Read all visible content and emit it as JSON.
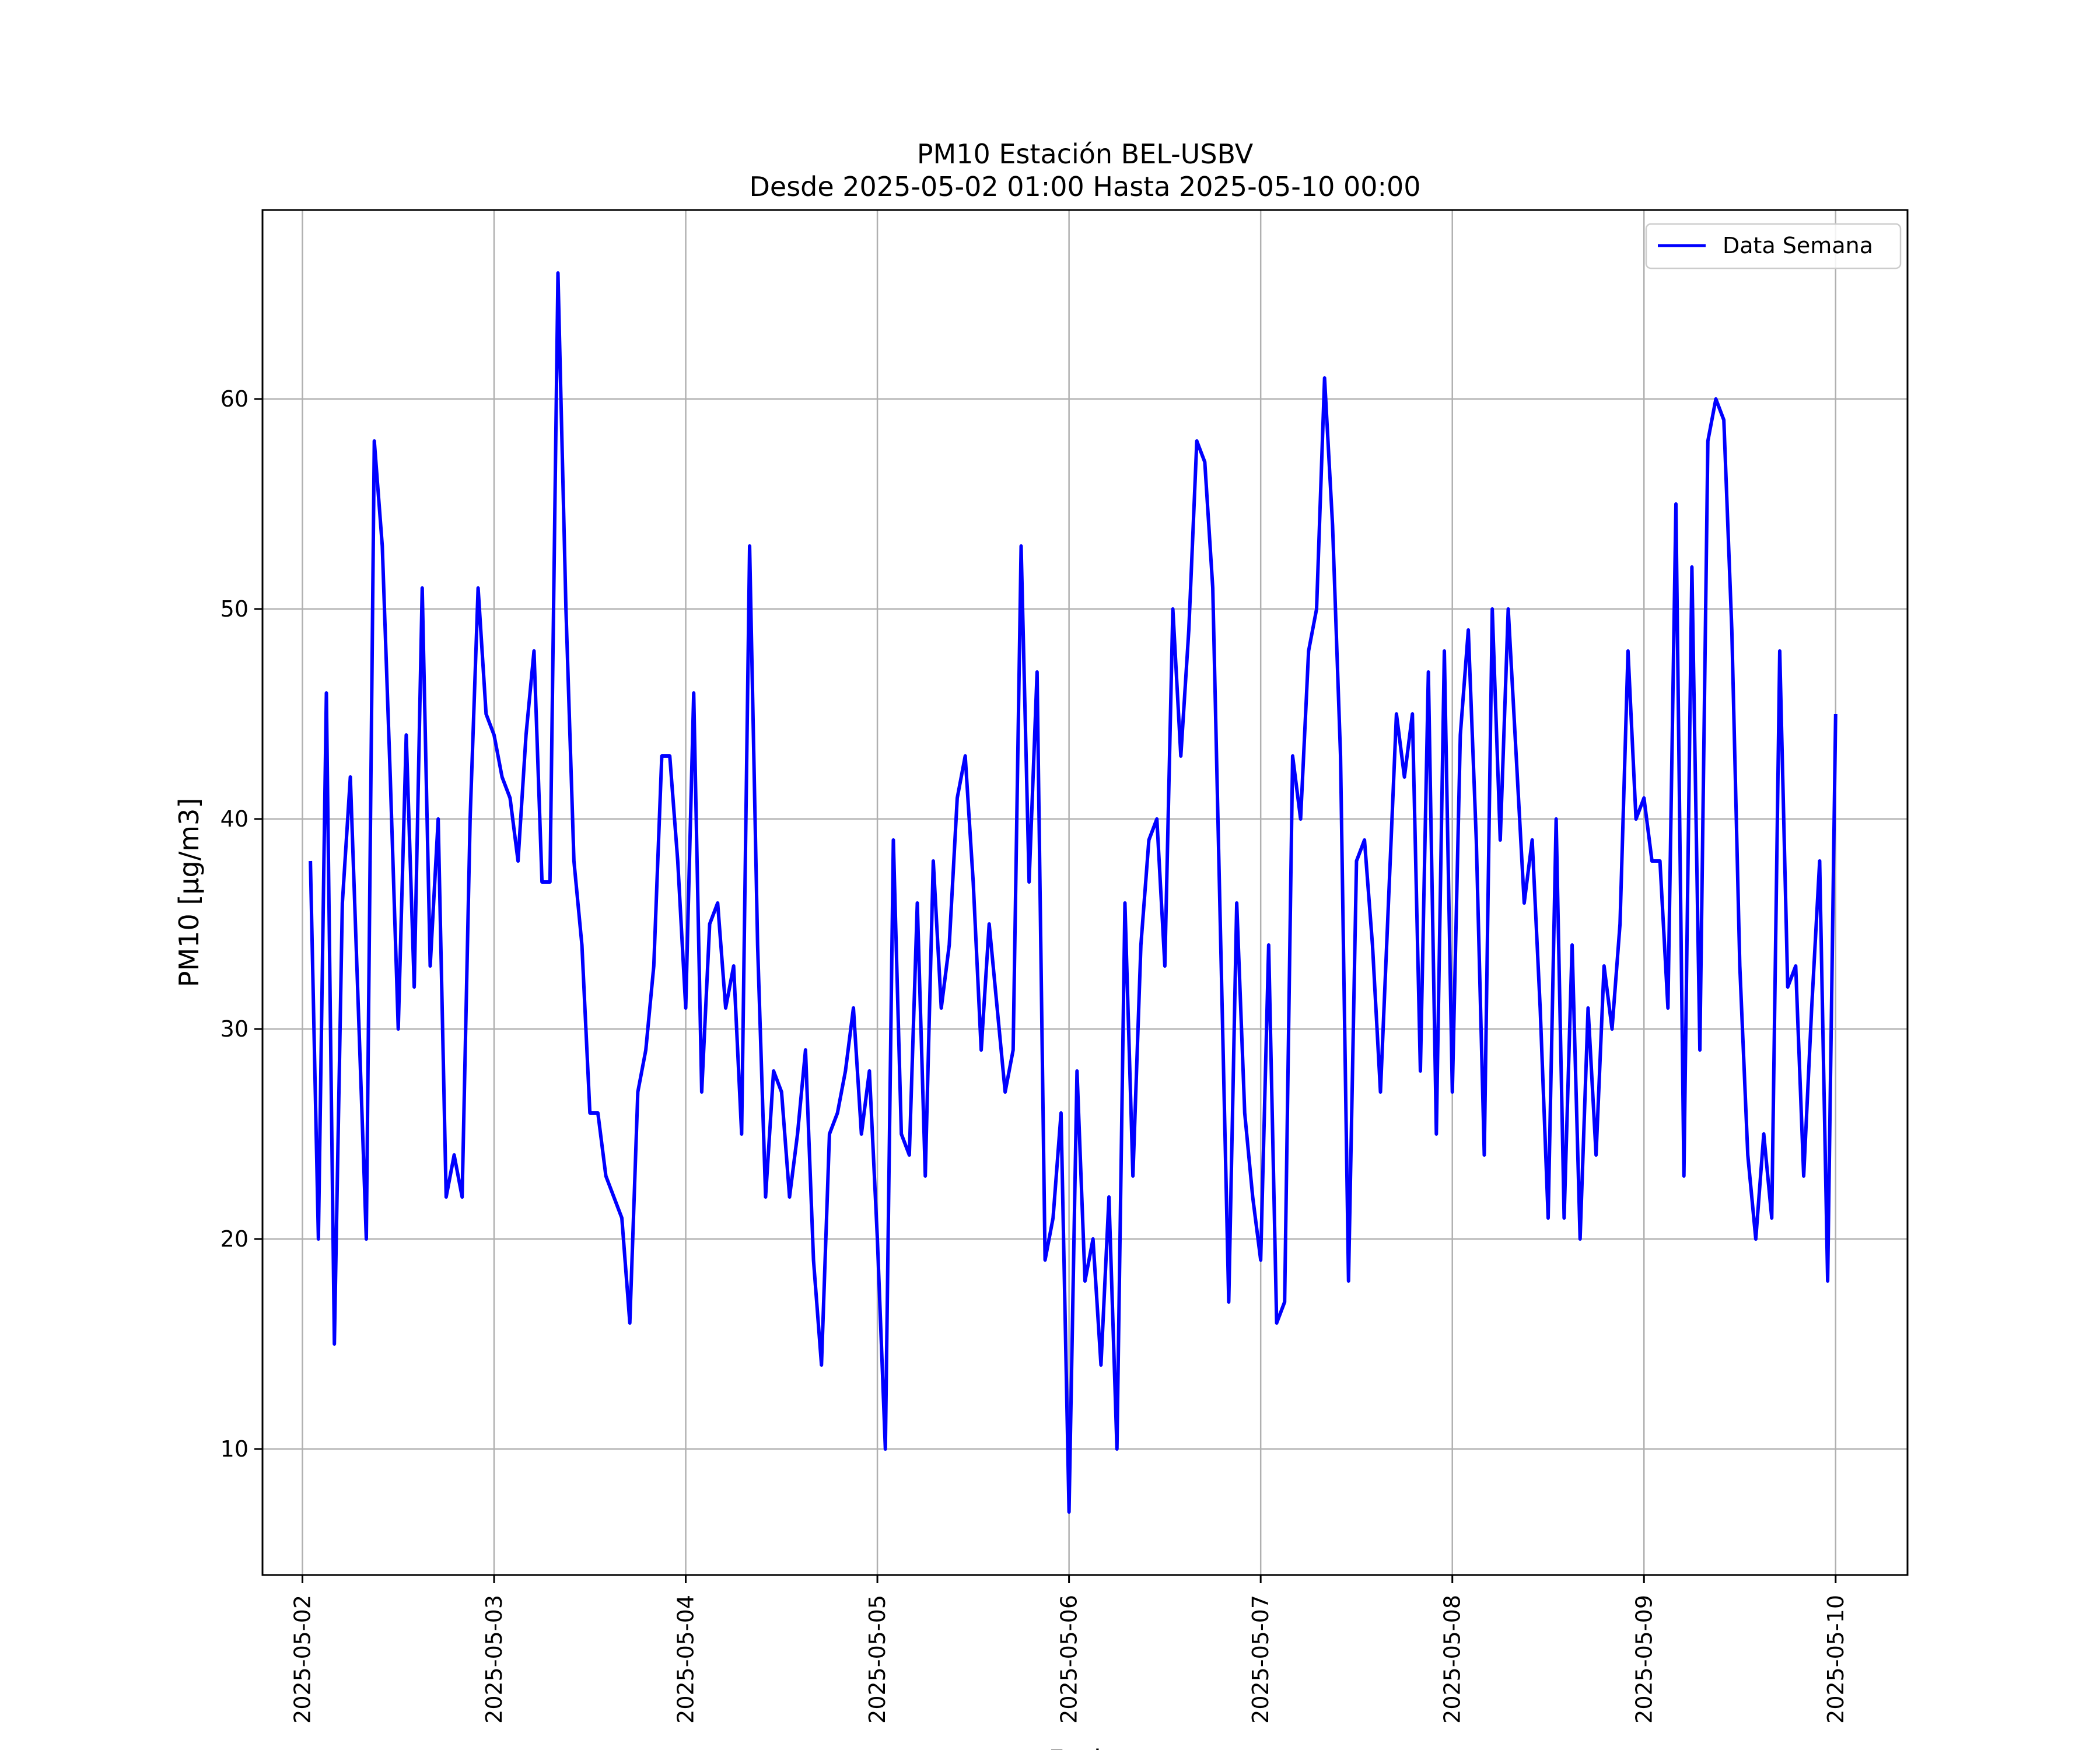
{
  "chart_data": {
    "type": "line",
    "title": "PM10 Estación BEL-USBV",
    "subtitle": "Desde 2025-05-02 01:00 Hasta 2025-05-10 00:00",
    "xlabel": "Fecha",
    "ylabel": "PM10 [μg/m3]",
    "xlim": [
      "2025-05-01 19:00",
      "2025-05-10 09:00"
    ],
    "ylim": [
      4,
      69
    ],
    "grid": true,
    "legend_position": "top-right",
    "x_ticks": [
      "2025-05-02",
      "2025-05-03",
      "2025-05-04",
      "2025-05-05",
      "2025-05-06",
      "2025-05-07",
      "2025-05-08",
      "2025-05-09",
      "2025-05-10"
    ],
    "y_ticks": [
      10,
      20,
      30,
      40,
      50,
      60
    ],
    "series": [
      {
        "name": "Data Semana",
        "color": "#0000ff",
        "time_step": "1h",
        "start": "2025-05-02 01:00",
        "end": "2025-05-10 00:00",
        "values": [
          38,
          20,
          46,
          15,
          36,
          42,
          31,
          20,
          58,
          53,
          42,
          30,
          44,
          32,
          51,
          33,
          40,
          22,
          24,
          22,
          40,
          51,
          45,
          44,
          42,
          41,
          38,
          44,
          48,
          37,
          37,
          66,
          50,
          38,
          34,
          26,
          26,
          23,
          22,
          21,
          16,
          27,
          29,
          33,
          43,
          43,
          38,
          31,
          46,
          27,
          35,
          36,
          31,
          33,
          25,
          53,
          34,
          22,
          28,
          27,
          22,
          25,
          29,
          19,
          14,
          25,
          26,
          28,
          31,
          25,
          28,
          20,
          10,
          39,
          25,
          24,
          36,
          23,
          38,
          31,
          34,
          41,
          43,
          37,
          29,
          35,
          31,
          27,
          29,
          53,
          37,
          47,
          19,
          21,
          26,
          7,
          28,
          18,
          20,
          14,
          22,
          10,
          36,
          23,
          34,
          39,
          40,
          33,
          50,
          43,
          49,
          58,
          57,
          51,
          34,
          17,
          36,
          26,
          22,
          19,
          34,
          16,
          17,
          43,
          40,
          48,
          50,
          61,
          54,
          43,
          18,
          38,
          39,
          34,
          27,
          36,
          45,
          42,
          45,
          28,
          47,
          25,
          48,
          27,
          44,
          49,
          39,
          24,
          50,
          39,
          50,
          43,
          36,
          39,
          31,
          21,
          40,
          21,
          34,
          20,
          31,
          24,
          33,
          30,
          35,
          48,
          40,
          41,
          38,
          38,
          31,
          55,
          23,
          52,
          29,
          58,
          60,
          59,
          49,
          33,
          24,
          20,
          25,
          21,
          48,
          32,
          33,
          23,
          31,
          38,
          18,
          45
        ]
      }
    ]
  }
}
